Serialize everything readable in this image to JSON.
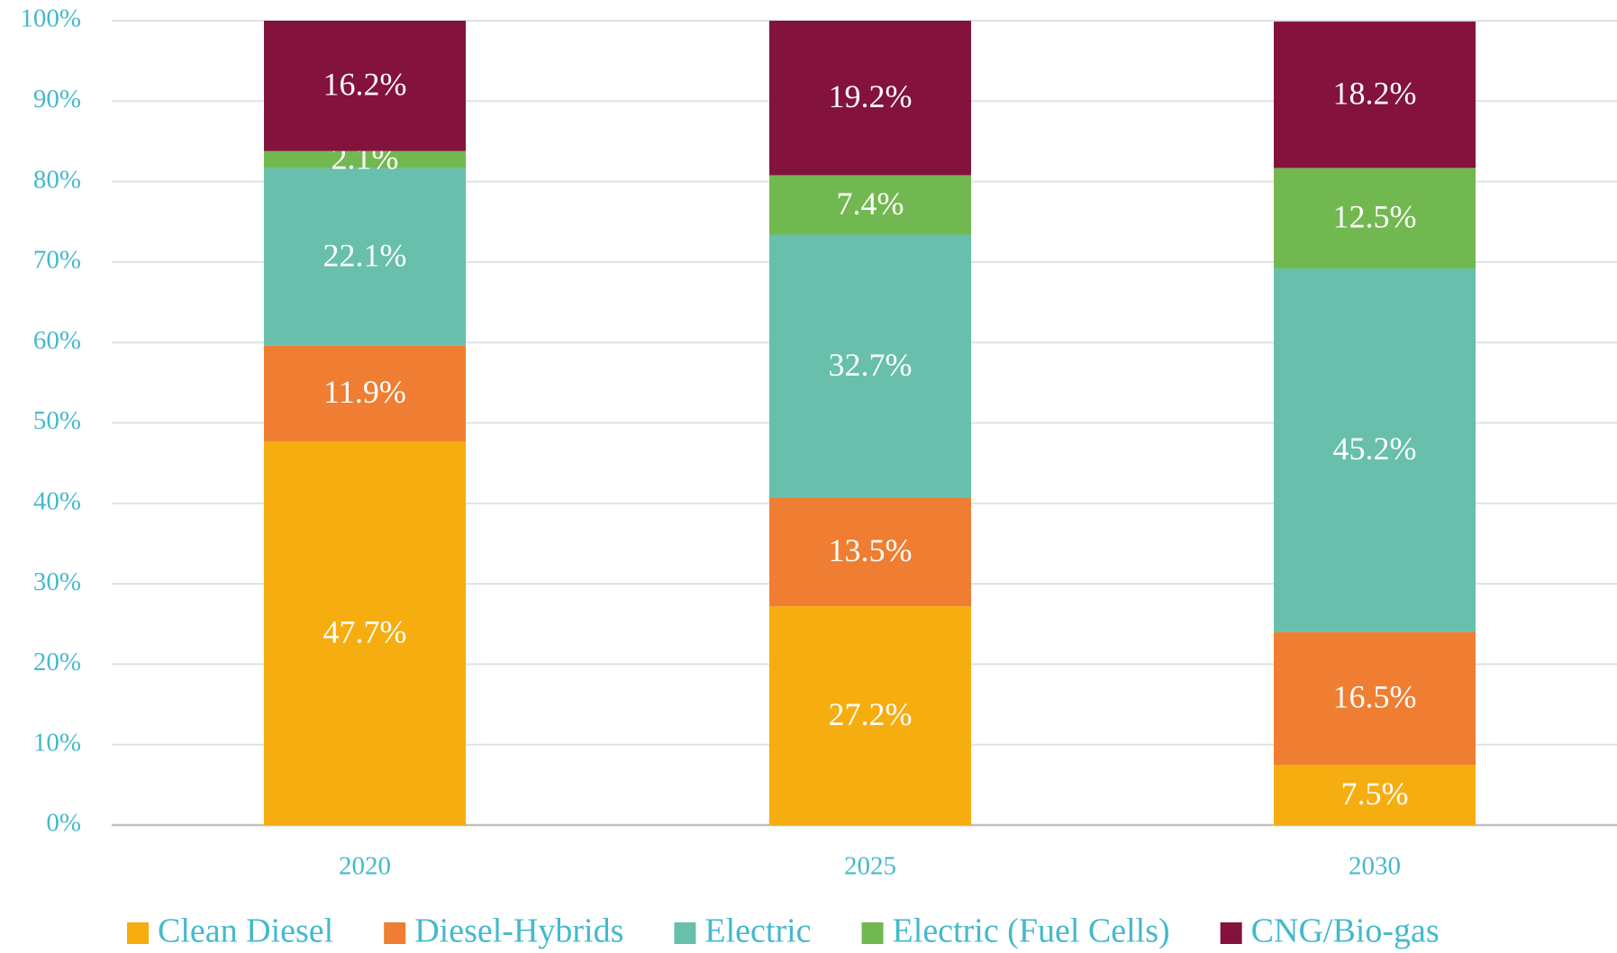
{
  "chart_data": {
    "type": "stacked_bar",
    "categories": [
      "2020",
      "2025",
      "2030"
    ],
    "series": [
      {
        "name": "Clean Diesel",
        "color": "#f6ad10",
        "values": [
          47.7,
          27.2,
          7.5
        ],
        "value_labels": [
          "47.7%",
          "27.2%",
          "7.5%"
        ]
      },
      {
        "name": "Diesel-Hybrids",
        "color": "#ef7e32",
        "values": [
          11.9,
          13.5,
          16.5
        ],
        "value_labels": [
          "11.9%",
          "13.5%",
          "16.5%"
        ]
      },
      {
        "name": "Electric",
        "color": "#67bfac",
        "values": [
          22.1,
          32.7,
          45.2
        ],
        "value_labels": [
          "22.1%",
          "32.7%",
          "45.2%"
        ]
      },
      {
        "name": "Electric (Fuel Cells)",
        "color": "#72b850",
        "values": [
          2.1,
          7.4,
          12.5
        ],
        "value_labels": [
          "2.1%",
          "7.4%",
          "12.5%"
        ]
      },
      {
        "name": "CNG/Bio-gas",
        "color": "#83123d",
        "values": [
          16.2,
          19.2,
          18.2
        ],
        "value_labels": [
          "16.2%",
          "19.2%",
          "18.2%"
        ]
      }
    ],
    "ylim": [
      0,
      100
    ],
    "yticks": [
      {
        "value": 0,
        "label": "0%"
      },
      {
        "value": 10,
        "label": "10%"
      },
      {
        "value": 20,
        "label": "20%"
      },
      {
        "value": 30,
        "label": "30%"
      },
      {
        "value": 40,
        "label": "40%"
      },
      {
        "value": 50,
        "label": "50%"
      },
      {
        "value": 60,
        "label": "60%"
      },
      {
        "value": 70,
        "label": "70%"
      },
      {
        "value": 80,
        "label": "80%"
      },
      {
        "value": 90,
        "label": "90%"
      },
      {
        "value": 100,
        "label": "100%"
      }
    ],
    "grid": true,
    "legend": "bottom"
  }
}
